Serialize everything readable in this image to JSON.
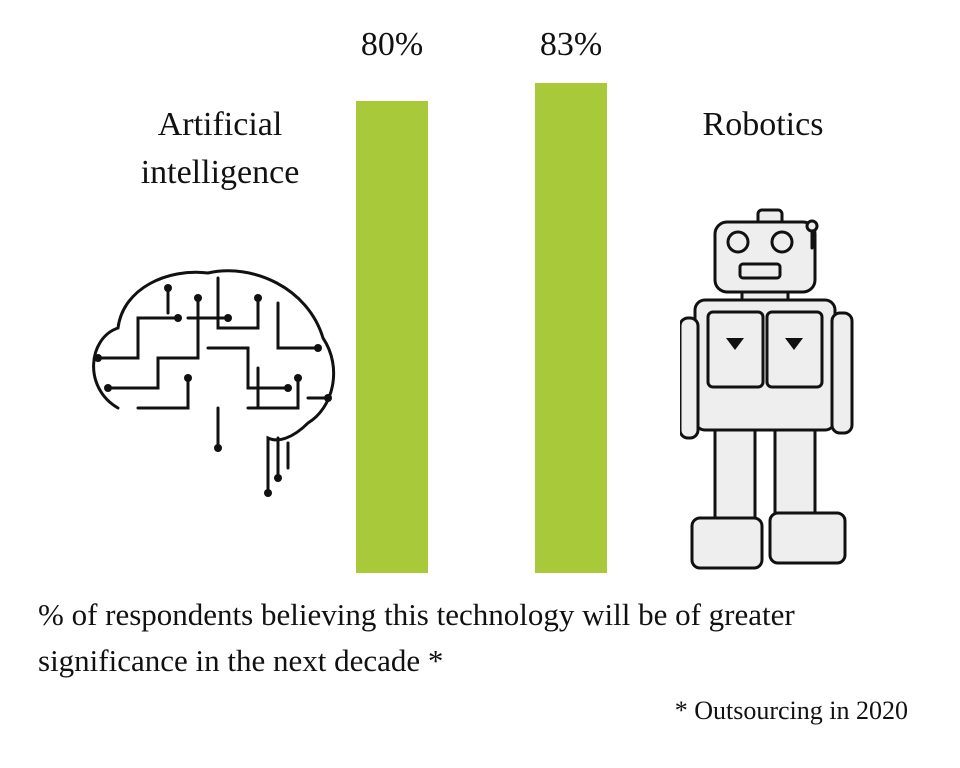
{
  "chart_data": {
    "type": "bar",
    "categories": [
      "Artificial intelligence",
      "Robotics"
    ],
    "values": [
      80,
      83
    ],
    "value_labels": [
      "80%",
      "83%"
    ],
    "color": "#a8c93a",
    "caption": "% of respondents believing this technology will be of greater significance in the next decade *",
    "footnote": "* Outsourcing in 2020"
  }
}
